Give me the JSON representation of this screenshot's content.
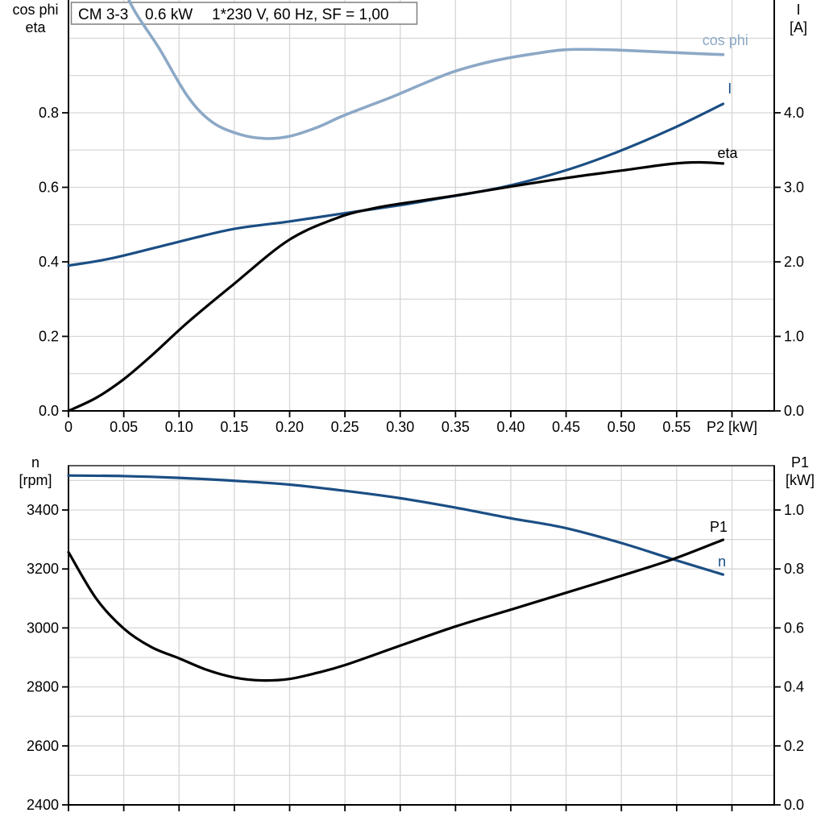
{
  "title": {
    "text": "CM 3-3   0.6 kW   1*230 V, 60 Hz, SF = 1,00",
    "parts": [
      "CM 3-3",
      "0.6 kW",
      "1*230 V, 60 Hz, SF = 1,00"
    ]
  },
  "headers": {
    "top_left": [
      "cos phi",
      "eta"
    ],
    "top_right": [
      "I",
      "[A]"
    ],
    "bottom_left": [
      "n",
      "[rpm]"
    ],
    "bottom_right": [
      "P1",
      "[kW]"
    ]
  },
  "colors": {
    "light_blue": "#8ca8c6",
    "dark_blue": "#1b4e84",
    "black": "#000000",
    "grid": "#d6d6d6",
    "axis": "#000000",
    "frame_gray": "#595959",
    "title_border": "#7f7f7f",
    "title_bg": "#ffffff",
    "text": "#000000"
  },
  "chart_data": [
    {
      "type": "line",
      "name": "motor-electrical-curves",
      "x_axis": {
        "label": "P2 [kW]",
        "min": 0,
        "max": 0.63825,
        "grid_step": 0.05,
        "ticks": [
          [
            0,
            "0"
          ],
          [
            0.05,
            "0.05"
          ],
          [
            0.1,
            "0.10"
          ],
          [
            0.15,
            "0.15"
          ],
          [
            0.2,
            "0.20"
          ],
          [
            0.25,
            "0.25"
          ],
          [
            0.3,
            "0.30"
          ],
          [
            0.35,
            "0.35"
          ],
          [
            0.4,
            "0.40"
          ],
          [
            0.45,
            "0.45"
          ],
          [
            0.5,
            "0.50"
          ],
          [
            0.55,
            "0.55"
          ],
          [
            0.6,
            "P2 [kW]"
          ]
        ]
      },
      "left_axis": {
        "label": "cos phi / eta",
        "min": 0,
        "max": 1.1027,
        "grid_step": 0.1,
        "ticks": [
          [
            0,
            "0.0"
          ],
          [
            0.2,
            "0.2"
          ],
          [
            0.4,
            "0.4"
          ],
          [
            0.6,
            "0.6"
          ],
          [
            0.8,
            "0.8"
          ]
        ]
      },
      "right_axis": {
        "label": "I [A]",
        "min": 0,
        "max": 5.5135,
        "ticks": [
          [
            0,
            "0.0"
          ],
          [
            1,
            "1.0"
          ],
          [
            2,
            "2.0"
          ],
          [
            3,
            "3.0"
          ],
          [
            4,
            "4.0"
          ]
        ]
      },
      "series": [
        {
          "name": "cos phi",
          "axis": "left",
          "color_key": "light_blue",
          "width": 3.6,
          "label": "cos phi",
          "label_at": [
            0.594,
            0.982
          ],
          "label_anchor": "middle",
          "points": [
            [
              0.04,
              1.25
            ],
            [
              0.0546,
              1.103
            ],
            [
              0.082,
              0.973
            ],
            [
              0.108,
              0.843
            ],
            [
              0.13,
              0.775
            ],
            [
              0.155,
              0.742
            ],
            [
              0.178,
              0.731
            ],
            [
              0.2,
              0.737
            ],
            [
              0.225,
              0.761
            ],
            [
              0.246,
              0.789
            ],
            [
              0.27,
              0.817
            ],
            [
              0.293,
              0.843
            ],
            [
              0.32,
              0.877
            ],
            [
              0.346,
              0.908
            ],
            [
              0.37,
              0.929
            ],
            [
              0.394,
              0.945
            ],
            [
              0.42,
              0.958
            ],
            [
              0.448,
              0.969
            ],
            [
              0.475,
              0.97
            ],
            [
              0.5,
              0.968
            ],
            [
              0.545,
              0.962
            ],
            [
              0.592,
              0.956
            ]
          ]
        },
        {
          "name": "I",
          "axis": "right",
          "color_key": "dark_blue",
          "width": 3.2,
          "label": "I",
          "label_at": [
            0.598,
            4.26
          ],
          "label_anchor": "middle",
          "points": [
            [
              0.0,
              1.95
            ],
            [
              0.04,
              2.05
            ],
            [
              0.1,
              2.27
            ],
            [
              0.149,
              2.44
            ],
            [
              0.199,
              2.54
            ],
            [
              0.244,
              2.64
            ],
            [
              0.3,
              2.76
            ],
            [
              0.3315,
              2.84
            ],
            [
              0.392,
              3.0
            ],
            [
              0.448,
              3.22
            ],
            [
              0.494,
              3.46
            ],
            [
              0.545,
              3.78
            ],
            [
              0.592,
              4.12
            ]
          ]
        },
        {
          "name": "eta",
          "axis": "left",
          "color_key": "black",
          "width": 3.2,
          "label": "eta",
          "label_at": [
            0.596,
            0.679
          ],
          "label_anchor": "middle",
          "points": [
            [
              0.0,
              0.0
            ],
            [
              0.025,
              0.035
            ],
            [
              0.05,
              0.085
            ],
            [
              0.075,
              0.148
            ],
            [
              0.108,
              0.238
            ],
            [
              0.149,
              0.339
            ],
            [
              0.199,
              0.458
            ],
            [
              0.244,
              0.519
            ],
            [
              0.275,
              0.543
            ],
            [
              0.3,
              0.556
            ],
            [
              0.35,
              0.578
            ],
            [
              0.4,
              0.602
            ],
            [
              0.45,
              0.625
            ],
            [
              0.5,
              0.645
            ],
            [
              0.545,
              0.663
            ],
            [
              0.57,
              0.667
            ],
            [
              0.592,
              0.664
            ]
          ]
        }
      ]
    },
    {
      "type": "line",
      "name": "motor-speed-power-curves",
      "x_axis": {
        "label": "",
        "min": 0,
        "max": 0.63825,
        "grid_step": 0.05,
        "ticks": [
          [
            0,
            ""
          ],
          [
            0.05,
            ""
          ],
          [
            0.1,
            ""
          ],
          [
            0.15,
            ""
          ],
          [
            0.2,
            ""
          ],
          [
            0.25,
            ""
          ],
          [
            0.3,
            ""
          ],
          [
            0.35,
            ""
          ],
          [
            0.4,
            ""
          ],
          [
            0.45,
            ""
          ],
          [
            0.5,
            ""
          ],
          [
            0.55,
            ""
          ],
          [
            0.6,
            ""
          ]
        ]
      },
      "left_axis": {
        "label": "n [rpm]",
        "min": 2400,
        "max": 3550.3,
        "grid_step": 100,
        "ticks": [
          [
            2400,
            "2400"
          ],
          [
            2600,
            "2600"
          ],
          [
            2800,
            "2800"
          ],
          [
            3000,
            "3000"
          ],
          [
            3200,
            "3200"
          ],
          [
            3400,
            "3400"
          ]
        ]
      },
      "right_axis": {
        "label": "P1 [kW]",
        "min": 0,
        "max": 1.1503,
        "ticks": [
          [
            0,
            "0.0"
          ],
          [
            0.2,
            "0.2"
          ],
          [
            0.4,
            "0.4"
          ],
          [
            0.6,
            "0.6"
          ],
          [
            0.8,
            "0.8"
          ],
          [
            1.0,
            "1.0"
          ]
        ]
      },
      "series": [
        {
          "name": "n",
          "axis": "left",
          "color_key": "dark_blue",
          "width": 3.2,
          "label": "n",
          "label_at": [
            0.591,
            3209
          ],
          "label_anchor": "middle",
          "points": [
            [
              0.0,
              3517
            ],
            [
              0.05,
              3515
            ],
            [
              0.1,
              3509
            ],
            [
              0.15,
              3499
            ],
            [
              0.2,
              3486
            ],
            [
              0.25,
              3465
            ],
            [
              0.3,
              3440
            ],
            [
              0.35,
              3408
            ],
            [
              0.4,
              3372
            ],
            [
              0.448,
              3340
            ],
            [
              0.5,
              3288
            ],
            [
              0.5465,
              3233
            ],
            [
              0.592,
              3181
            ]
          ]
        },
        {
          "name": "P1",
          "axis": "right",
          "color_key": "black",
          "width": 3.2,
          "label": "P1",
          "label_at": [
            0.588,
            0.926
          ],
          "label_anchor": "middle",
          "points": [
            [
              0.0,
              0.857
            ],
            [
              0.025,
              0.7
            ],
            [
              0.05,
              0.598
            ],
            [
              0.075,
              0.535
            ],
            [
              0.1,
              0.497
            ],
            [
              0.125,
              0.458
            ],
            [
              0.15,
              0.432
            ],
            [
              0.175,
              0.422
            ],
            [
              0.2,
              0.427
            ],
            [
              0.225,
              0.448
            ],
            [
              0.25,
              0.474
            ],
            [
              0.3,
              0.54
            ],
            [
              0.35,
              0.605
            ],
            [
              0.4,
              0.662
            ],
            [
              0.448,
              0.717
            ],
            [
              0.5,
              0.777
            ],
            [
              0.5465,
              0.833
            ],
            [
              0.592,
              0.899
            ]
          ]
        }
      ]
    }
  ]
}
